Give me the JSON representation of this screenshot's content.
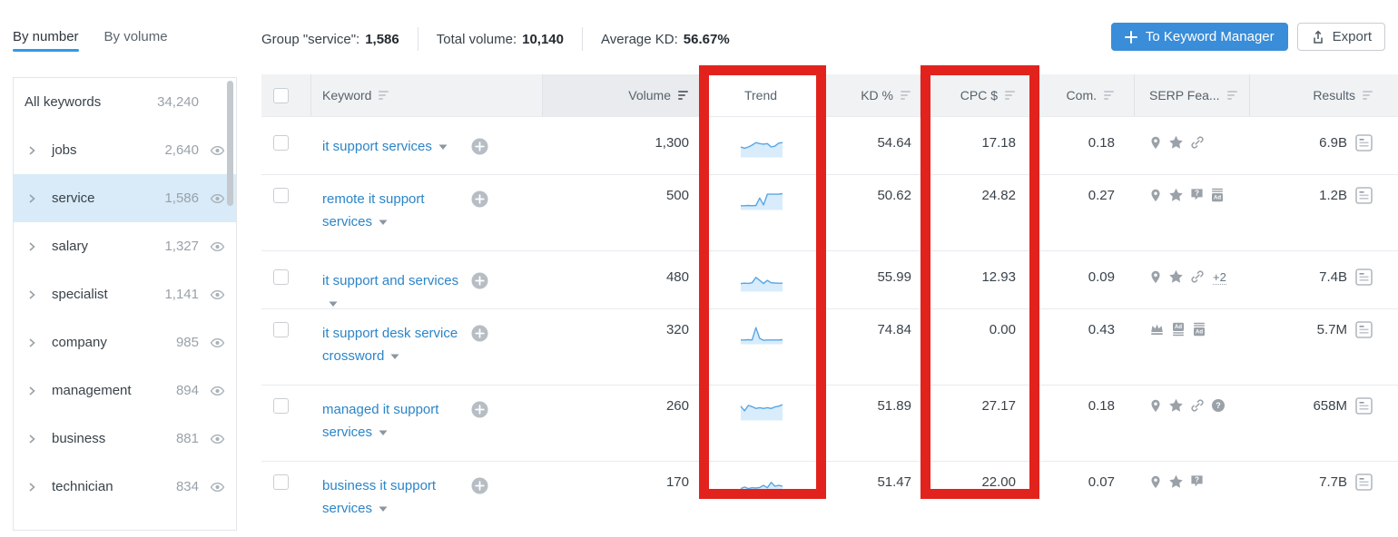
{
  "colors": {
    "accent_blue": "#3a8dd8",
    "link_blue": "#2b85c8",
    "annotation_red": "#e2231d",
    "selected_row_bg": "#d9ebf8",
    "spark_line": "#57a6e4",
    "spark_fill": "#d8ecfc",
    "icon_gray": "#9aa1a8"
  },
  "view_tabs": [
    {
      "label": "By number",
      "active": true
    },
    {
      "label": "By volume",
      "active": false
    }
  ],
  "summary": {
    "group_label": "Group \"service\":",
    "group_value": "1,586",
    "volume_label": "Total volume:",
    "volume_value": "10,140",
    "kd_label": "Average KD:",
    "kd_value": "56.67%"
  },
  "actions": {
    "to_keyword_manager": "To Keyword Manager",
    "export": "Export"
  },
  "sidebar": {
    "all_keywords": {
      "label": "All keywords",
      "count": "34,240"
    },
    "groups": [
      {
        "label": "jobs",
        "count": "2,640",
        "selected": false
      },
      {
        "label": "service",
        "count": "1,586",
        "selected": true
      },
      {
        "label": "salary",
        "count": "1,327",
        "selected": false
      },
      {
        "label": "specialist",
        "count": "1,141",
        "selected": false
      },
      {
        "label": "company",
        "count": "985",
        "selected": false
      },
      {
        "label": "management",
        "count": "894",
        "selected": false
      },
      {
        "label": "business",
        "count": "881",
        "selected": false
      },
      {
        "label": "technician",
        "count": "834",
        "selected": false
      }
    ]
  },
  "table": {
    "columns": [
      {
        "key": "keyword",
        "label": "Keyword",
        "sortable": true,
        "sorted": false
      },
      {
        "key": "volume",
        "label": "Volume",
        "sortable": true,
        "sorted": true
      },
      {
        "key": "trend",
        "label": "Trend",
        "sortable": false,
        "sorted": false
      },
      {
        "key": "kd",
        "label": "KD %",
        "sortable": true,
        "sorted": false
      },
      {
        "key": "cpc",
        "label": "CPC $",
        "sortable": true,
        "sorted": false
      },
      {
        "key": "com",
        "label": "Com.",
        "sortable": true,
        "sorted": false
      },
      {
        "key": "serp",
        "label": "SERP Fea...",
        "sortable": true,
        "sorted": false
      },
      {
        "key": "results",
        "label": "Results",
        "sortable": true,
        "sorted": false
      }
    ],
    "rows": [
      {
        "keyword_lines": [
          "it support services"
        ],
        "volume": "1,300",
        "trend_series": 0,
        "kd": "54.64",
        "cpc": "17.18",
        "com": "0.18",
        "serp_features": [
          "local-pack-pin",
          "reviews-star",
          "sitelinks-link"
        ],
        "serp_more": "",
        "results": "6.9B",
        "two_line": false
      },
      {
        "keyword_lines": [
          "remote it support",
          "services"
        ],
        "volume": "500",
        "trend_series": 1,
        "kd": "50.62",
        "cpc": "24.82",
        "com": "0.27",
        "serp_features": [
          "local-pack-pin",
          "reviews-star",
          "people-also-ask",
          "ads-bottom"
        ],
        "serp_more": "",
        "results": "1.2B",
        "two_line": true
      },
      {
        "keyword_lines": [
          "it support and services"
        ],
        "volume": "480",
        "trend_series": 2,
        "kd": "55.99",
        "cpc": "12.93",
        "com": "0.09",
        "serp_features": [
          "local-pack-pin",
          "reviews-star",
          "sitelinks-link"
        ],
        "serp_more": "+2",
        "results": "7.4B",
        "two_line": false
      },
      {
        "keyword_lines": [
          "it support desk service",
          "crossword"
        ],
        "volume": "320",
        "trend_series": 3,
        "kd": "74.84",
        "cpc": "0.00",
        "com": "0.43",
        "serp_features": [
          "crown",
          "ads-top",
          "ads-bottom"
        ],
        "serp_more": "",
        "results": "5.7M",
        "two_line": true
      },
      {
        "keyword_lines": [
          "managed it support",
          "services"
        ],
        "volume": "260",
        "trend_series": 4,
        "kd": "51.89",
        "cpc": "27.17",
        "com": "0.18",
        "serp_features": [
          "local-pack-pin",
          "reviews-star",
          "sitelinks-link",
          "faq-question"
        ],
        "serp_more": "",
        "results": "658M",
        "two_line": true
      },
      {
        "keyword_lines": [
          "business it support",
          "services"
        ],
        "volume": "170",
        "trend_series": 5,
        "kd": "51.47",
        "cpc": "22.00",
        "com": "0.07",
        "serp_features": [
          "local-pack-pin",
          "reviews-star",
          "people-also-ask"
        ],
        "serp_more": "",
        "results": "7.7B",
        "two_line": true
      }
    ]
  },
  "chart_data": {
    "type": "line",
    "description": "12-point search-volume trend sparklines per keyword row, values normalized 0-1 (oldest to newest)",
    "series": [
      {
        "name": "it support services",
        "values": [
          0.5,
          0.42,
          0.5,
          0.62,
          0.78,
          0.72,
          0.68,
          0.72,
          0.5,
          0.55,
          0.75,
          0.78
        ]
      },
      {
        "name": "remote it support services",
        "values": [
          0.1,
          0.1,
          0.12,
          0.1,
          0.12,
          0.6,
          0.15,
          0.85,
          0.85,
          0.85,
          0.85,
          0.88
        ]
      },
      {
        "name": "it support and services",
        "values": [
          0.35,
          0.37,
          0.36,
          0.4,
          0.75,
          0.55,
          0.35,
          0.55,
          0.4,
          0.38,
          0.37,
          0.37
        ]
      },
      {
        "name": "it support desk service crossword",
        "values": [
          0.1,
          0.1,
          0.12,
          0.1,
          0.9,
          0.2,
          0.08,
          0.1,
          0.1,
          0.1,
          0.1,
          0.12
        ]
      },
      {
        "name": "managed it support services",
        "values": [
          0.75,
          0.45,
          0.8,
          0.72,
          0.6,
          0.65,
          0.6,
          0.65,
          0.6,
          0.7,
          0.75,
          0.85
        ]
      },
      {
        "name": "business it support services",
        "values": [
          0.35,
          0.45,
          0.35,
          0.4,
          0.38,
          0.42,
          0.55,
          0.4,
          0.75,
          0.5,
          0.55,
          0.5
        ]
      }
    ]
  },
  "annotations": {
    "highlight_color": "#e2231d",
    "boxes": [
      {
        "target": "trend-column"
      },
      {
        "target": "cpc-column"
      }
    ]
  }
}
